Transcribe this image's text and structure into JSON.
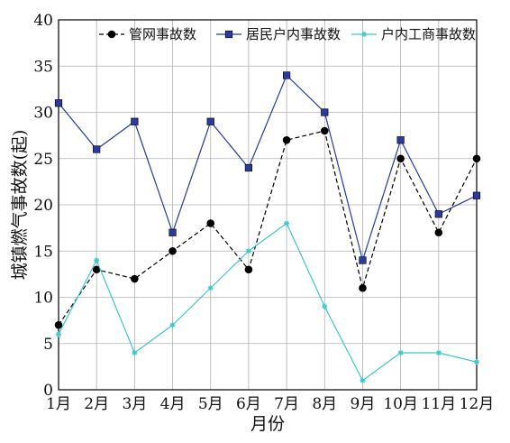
{
  "chart_data": {
    "type": "line",
    "title": "",
    "xlabel": "月份",
    "ylabel": "城镇燃气事故数(起)",
    "categories": [
      "1月",
      "2月",
      "3月",
      "4月",
      "5月",
      "6月",
      "7月",
      "8月",
      "9月",
      "10月",
      "11月",
      "12月"
    ],
    "ylim": [
      0,
      40
    ],
    "yticks": [
      "0",
      "5",
      "10",
      "15",
      "20",
      "25",
      "30",
      "35",
      "40"
    ],
    "grid": true,
    "legend_position": "top-right",
    "series": [
      {
        "name": "管网事故数",
        "values": [
          7,
          13,
          12,
          15,
          18,
          13,
          27,
          28,
          11,
          25,
          17,
          25
        ],
        "color": "#000000",
        "line_style": "dashed",
        "marker": "circle"
      },
      {
        "name": "居民户内事故数",
        "values": [
          31,
          26,
          29,
          17,
          29,
          24,
          34,
          30,
          14,
          27,
          19,
          21
        ],
        "color": "#2a3a9e",
        "line_style": "solid",
        "marker": "square"
      },
      {
        "name": "户内工商事故数",
        "values": [
          6,
          14,
          4,
          7,
          11,
          15,
          18,
          9,
          1,
          4,
          4,
          3
        ],
        "color": "#3cc8c8",
        "line_style": "solid",
        "marker": "star"
      }
    ]
  }
}
